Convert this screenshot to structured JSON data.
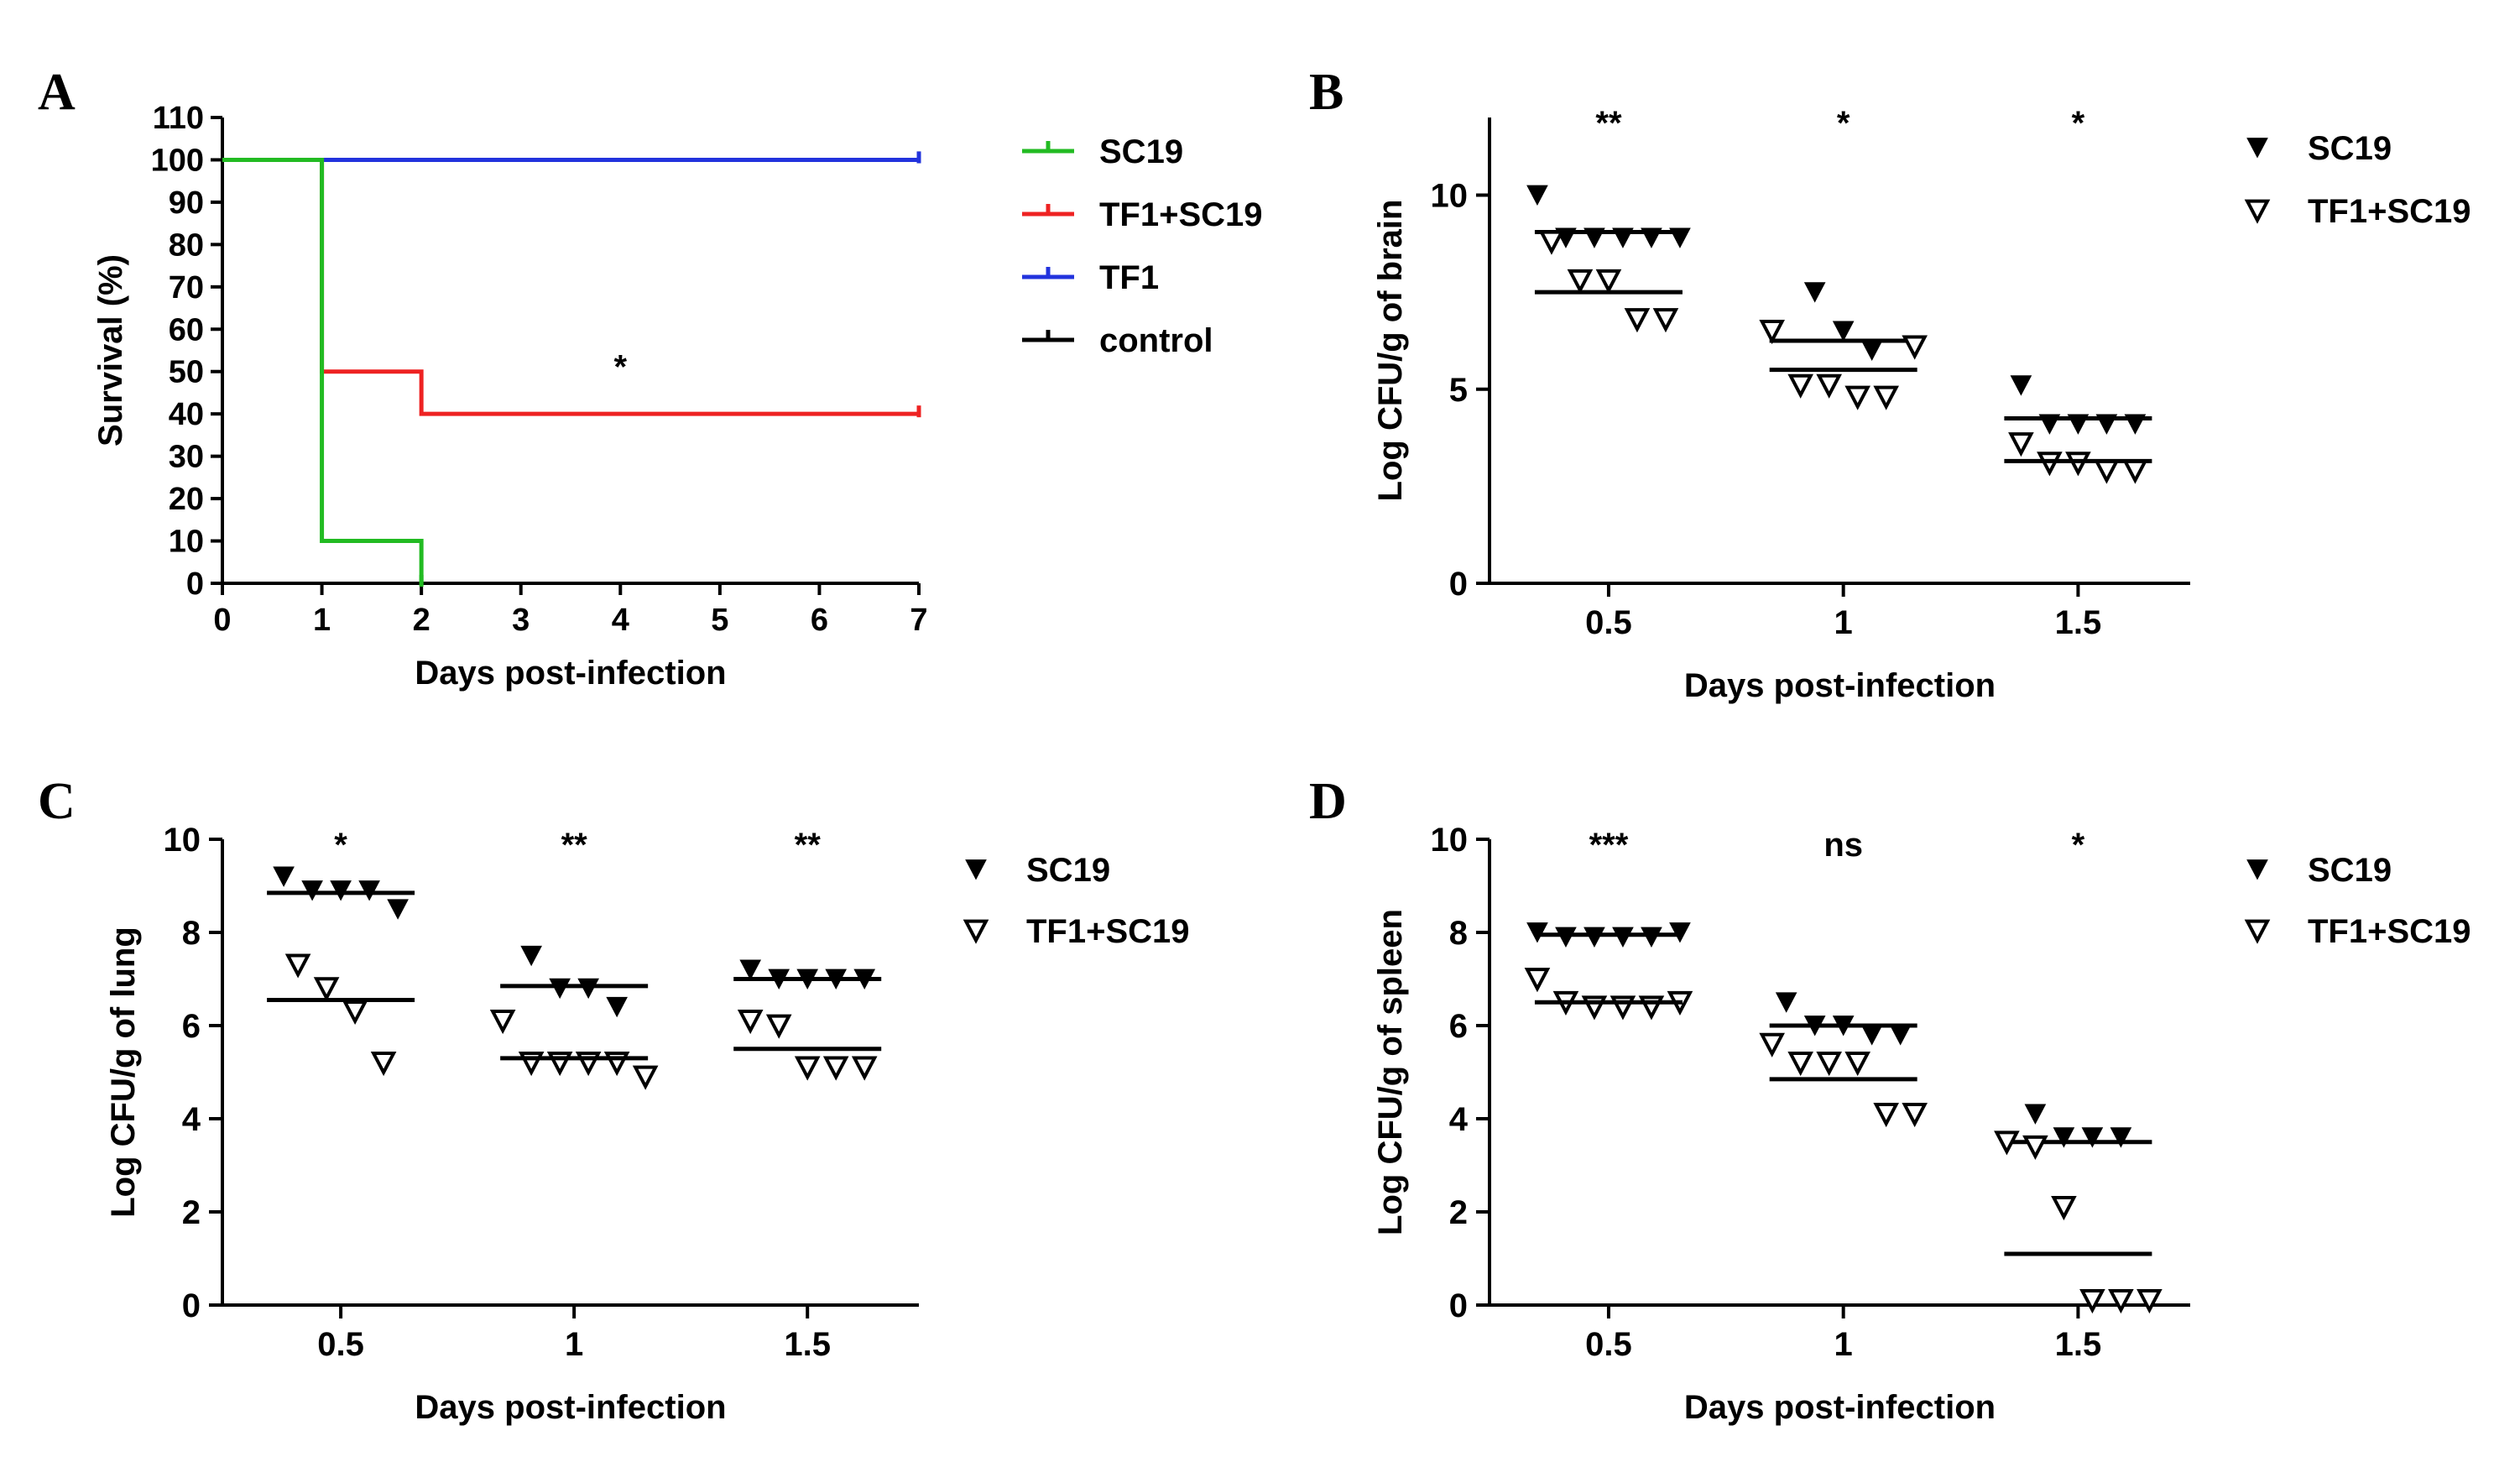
{
  "chart_data": [
    {
      "panel": "A",
      "type": "line",
      "subtype": "step-survival",
      "xlabel": "Days post-infection",
      "ylabel": "Survival (%)",
      "xlim": [
        0,
        7
      ],
      "ylim": [
        0,
        110
      ],
      "xticks": [
        "0",
        "1",
        "2",
        "3",
        "4",
        "5",
        "6",
        "7"
      ],
      "yticks": [
        "0",
        "10",
        "20",
        "30",
        "40",
        "50",
        "60",
        "70",
        "80",
        "90",
        "100",
        "110"
      ],
      "legend_position": "right",
      "significance": "*",
      "series": [
        {
          "name": "SC19",
          "color": "#22bb22",
          "points": [
            [
              0,
              100
            ],
            [
              1,
              100
            ],
            [
              1,
              10
            ],
            [
              2,
              10
            ],
            [
              2,
              0
            ]
          ]
        },
        {
          "name": "TF1+SC19",
          "color": "#ee2222",
          "points": [
            [
              0,
              100
            ],
            [
              1,
              100
            ],
            [
              1,
              50
            ],
            [
              2,
              50
            ],
            [
              2,
              40
            ],
            [
              7,
              40
            ]
          ]
        },
        {
          "name": "TF1",
          "color": "#2233dd",
          "points": [
            [
              0,
              100
            ],
            [
              7,
              100
            ]
          ]
        },
        {
          "name": "control",
          "color": "#000000",
          "points": [
            [
              0,
              100
            ],
            [
              7,
              100
            ]
          ]
        }
      ]
    },
    {
      "panel": "B",
      "type": "scatter",
      "xlabel": "Days post-infection",
      "ylabel": "Log CFU/g of brain",
      "categories": [
        "0.5",
        "1",
        "1.5"
      ],
      "ylim": [
        0,
        12
      ],
      "yticks": [
        "0",
        "5",
        "10"
      ],
      "significance": [
        "**",
        "*",
        "*"
      ],
      "legend_position": "right",
      "series": [
        {
          "name": "SC19",
          "marker": "filled-down-triangle",
          "values": [
            [
              10.0,
              8.9,
              8.9,
              8.9,
              8.9,
              8.9
            ],
            [
              7.5,
              6.5,
              6.0
            ],
            [
              5.1,
              4.1,
              4.1,
              4.1,
              4.1
            ]
          ],
          "means": [
            9.05,
            6.25,
            4.25
          ]
        },
        {
          "name": "TF1+SC19",
          "marker": "open-down-triangle",
          "values": [
            [
              8.8,
              7.8,
              7.8,
              6.8,
              6.8
            ],
            [
              6.5,
              5.1,
              5.1,
              4.8,
              4.8,
              6.1
            ],
            [
              3.6,
              3.1,
              3.1,
              2.9,
              2.9
            ]
          ],
          "means": [
            7.5,
            5.5,
            3.15
          ]
        }
      ]
    },
    {
      "panel": "C",
      "type": "scatter",
      "xlabel": "Days post-infection",
      "ylabel": "Log CFU/g of lung",
      "categories": [
        "0.5",
        "1",
        "1.5"
      ],
      "ylim": [
        0,
        10
      ],
      "yticks": [
        "0",
        "2",
        "4",
        "6",
        "8",
        "10"
      ],
      "significance": [
        "*",
        "**",
        "**"
      ],
      "legend_position": "right",
      "series": [
        {
          "name": "SC19",
          "marker": "filled-down-triangle",
          "values": [
            [
              9.2,
              8.9,
              8.9,
              8.9,
              8.5
            ],
            [
              7.5,
              6.8,
              6.8,
              6.4
            ],
            [
              7.2,
              7.0,
              7.0,
              7.0,
              7.0
            ]
          ],
          "means": [
            8.85,
            6.85,
            7.0
          ]
        },
        {
          "name": "TF1+SC19",
          "marker": "open-down-triangle",
          "values": [
            [
              7.3,
              6.8,
              6.3,
              5.2
            ],
            [
              6.1,
              5.2,
              5.2,
              5.2,
              5.2,
              4.9
            ],
            [
              6.1,
              6.0,
              5.1,
              5.1,
              5.1
            ]
          ],
          "means": [
            6.55,
            5.3,
            5.5
          ]
        }
      ]
    },
    {
      "panel": "D",
      "type": "scatter",
      "xlabel": "Days post-infection",
      "ylabel": "Log CFU/g of spleen",
      "categories": [
        "0.5",
        "1",
        "1.5"
      ],
      "ylim": [
        0,
        10
      ],
      "yticks": [
        "0",
        "2",
        "4",
        "6",
        "8",
        "10"
      ],
      "significance": [
        "***",
        "ns",
        "*"
      ],
      "legend_position": "right",
      "series": [
        {
          "name": "SC19",
          "marker": "filled-down-triangle",
          "values": [
            [
              8.0,
              7.9,
              7.9,
              7.9,
              7.9,
              8.0
            ],
            [
              6.5,
              6.0,
              6.0,
              5.8,
              5.8
            ],
            [
              4.1,
              3.6,
              3.6,
              3.6
            ]
          ],
          "means": [
            7.95,
            6.0,
            3.5
          ]
        },
        {
          "name": "TF1+SC19",
          "marker": "open-down-triangle",
          "values": [
            [
              7.0,
              6.5,
              6.4,
              6.4,
              6.4,
              6.5
            ],
            [
              5.6,
              5.2,
              5.2,
              5.2,
              4.1,
              4.1
            ],
            [
              3.5,
              3.4,
              2.1,
              0.1,
              0.1,
              0.1
            ]
          ],
          "means": [
            6.5,
            4.85,
            1.1
          ]
        }
      ]
    }
  ]
}
